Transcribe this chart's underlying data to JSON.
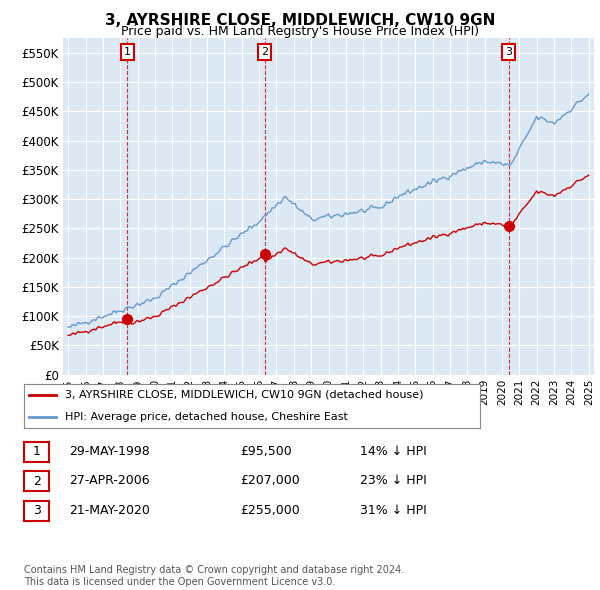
{
  "title": "3, AYRSHIRE CLOSE, MIDDLEWICH, CW10 9GN",
  "subtitle": "Price paid vs. HM Land Registry's House Price Index (HPI)",
  "ylim": [
    0,
    575000
  ],
  "yticks": [
    0,
    50000,
    100000,
    150000,
    200000,
    250000,
    300000,
    350000,
    400000,
    450000,
    500000,
    550000
  ],
  "ytick_labels": [
    "£0",
    "£50K",
    "£100K",
    "£150K",
    "£200K",
    "£250K",
    "£300K",
    "£350K",
    "£400K",
    "£450K",
    "£500K",
    "£550K"
  ],
  "bg_color": "#dce9f5",
  "legend_label_red": "3, AYRSHIRE CLOSE, MIDDLEWICH, CW10 9GN (detached house)",
  "legend_label_blue": "HPI: Average price, detached house, Cheshire East",
  "sale_dates": [
    "1998-05-29",
    "2006-04-27",
    "2020-05-21"
  ],
  "sale_prices": [
    95500,
    207000,
    255000
  ],
  "sale_labels": [
    "1",
    "2",
    "3"
  ],
  "table_rows": [
    [
      "1",
      "29-MAY-1998",
      "£95,500",
      "14% ↓ HPI"
    ],
    [
      "2",
      "27-APR-2006",
      "£207,000",
      "23% ↓ HPI"
    ],
    [
      "3",
      "21-MAY-2020",
      "£255,000",
      "31% ↓ HPI"
    ]
  ],
  "footer": "Contains HM Land Registry data © Crown copyright and database right 2024.\nThis data is licensed under the Open Government Licence v3.0.",
  "red_color": "#cc0000",
  "blue_color": "#6699cc"
}
